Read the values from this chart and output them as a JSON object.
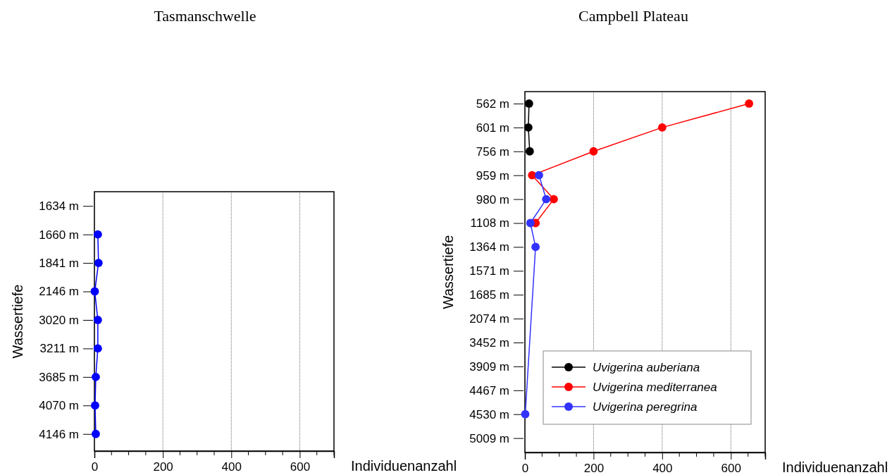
{
  "chart_data": [
    {
      "type": "line",
      "title": "Tasmanschwelle",
      "xlabel": "Individuenanzahl",
      "ylabel": "Wassertiefe",
      "orientation": "horizontal",
      "categories": [
        "1634 m",
        "1660 m",
        "1841 m",
        "2146 m",
        "3020 m",
        "3211 m",
        "3685 m",
        "4070 m",
        "4146 m"
      ],
      "series": [
        {
          "color": "#0000ff",
          "values": [
            null,
            10,
            12,
            1,
            10,
            10,
            4,
            2,
            4
          ]
        }
      ],
      "xlim": [
        0,
        700
      ],
      "xticks": [
        0,
        200,
        400,
        600
      ],
      "grid": "x",
      "marker": "circle",
      "line_style": "solid",
      "legend": false
    },
    {
      "type": "line",
      "title": "Campbell Plateau",
      "xlabel": "Individuenanzahl",
      "ylabel": "Wassertiefe",
      "orientation": "horizontal",
      "categories": [
        "562 m",
        "601 m",
        "756 m",
        "959 m",
        "980 m",
        "1108 m",
        "1364 m",
        "1571 m",
        "1685 m",
        "2074 m",
        "3452 m",
        "3909 m",
        "4467 m",
        "4530 m",
        "5009 m"
      ],
      "series": [
        {
          "name": "Uvigerina auberiana",
          "color": "#000000",
          "values": [
            12,
            10,
            14,
            null,
            null,
            null,
            null,
            null,
            null,
            null,
            null,
            null,
            null,
            null,
            null
          ]
        },
        {
          "name": "Uvigerina mediterranea",
          "color": "#ff0000",
          "values": [
            653,
            400,
            200,
            21,
            84,
            31,
            null,
            null,
            null,
            null,
            null,
            null,
            null,
            null,
            null
          ]
        },
        {
          "name": "Uvigerina peregrina",
          "color": "#3333ff",
          "values": [
            null,
            null,
            null,
            41,
            62,
            16,
            31,
            null,
            null,
            null,
            null,
            null,
            null,
            1,
            null
          ]
        }
      ],
      "xlim": [
        0,
        700
      ],
      "xticks": [
        0,
        200,
        400,
        600
      ],
      "grid": "x",
      "marker": "circle",
      "line_style": "solid",
      "legend": "bottom right"
    }
  ]
}
